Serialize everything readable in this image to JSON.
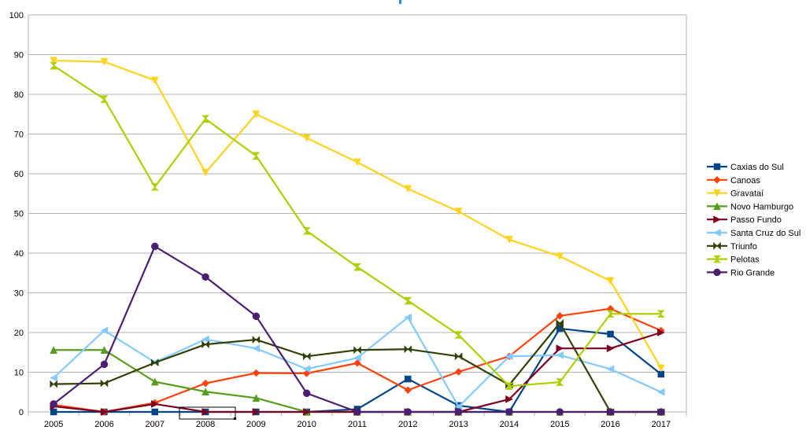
{
  "chart_data": {
    "type": "line",
    "title": "",
    "xlabel": "",
    "ylabel": "",
    "categories": [
      "2005",
      "2006",
      "2007",
      "2008",
      "2009",
      "2010",
      "2011",
      "2012",
      "2013",
      "2014",
      "2015",
      "2016",
      "2017"
    ],
    "ylim": [
      0,
      100
    ],
    "yticks": [
      "0",
      "10",
      "20",
      "30",
      "40",
      "50",
      "60",
      "70",
      "80",
      "90",
      "100"
    ],
    "grid": "horizontal",
    "legend_position": "right",
    "series": [
      {
        "name": "Caxias do Sul",
        "color": "#004586",
        "marker": "square",
        "values": [
          0,
          0,
          0,
          0,
          0,
          0,
          0.7,
          8.3,
          1.6,
          0,
          21,
          19.6,
          9.5
        ]
      },
      {
        "name": "Canoas",
        "color": "#ff420e",
        "marker": "diamond",
        "values": [
          1.8,
          0,
          2.3,
          7.2,
          9.8,
          9.7,
          12.3,
          5.5,
          10.1,
          14,
          24.2,
          26,
          20.5
        ]
      },
      {
        "name": "Gravataí",
        "color": "#ffd320",
        "marker": "triangle-down",
        "values": [
          88.5,
          88.2,
          83.5,
          60.3,
          75,
          69,
          62.9,
          56.2,
          50.5,
          43.4,
          39.2,
          33,
          11
        ]
      },
      {
        "name": "Novo Hamburgo",
        "color": "#579d1c",
        "marker": "triangle-up",
        "values": [
          15.6,
          15.6,
          7.6,
          5.1,
          3.5,
          0,
          0,
          0,
          0,
          0,
          0,
          0,
          0
        ]
      },
      {
        "name": "Passo Fundo",
        "color": "#7e0021",
        "marker": "triangle-right",
        "values": [
          1.4,
          0,
          2,
          0,
          0,
          0,
          0,
          0,
          0,
          3.2,
          16,
          16,
          20
        ]
      },
      {
        "name": "Santa Cruz do Sul",
        "color": "#83caff",
        "marker": "triangle-left",
        "values": [
          8.6,
          20.5,
          12.5,
          18.3,
          16,
          10.8,
          13.6,
          23.8,
          1.3,
          14,
          14.3,
          10.8,
          5
        ]
      },
      {
        "name": "Triunfo",
        "color": "#314004",
        "marker": "bowtie",
        "values": [
          7,
          7.2,
          12.4,
          17,
          18.2,
          14,
          15.6,
          15.8,
          14,
          6.8,
          22.4,
          0,
          0
        ]
      },
      {
        "name": "Pelotas",
        "color": "#aecf00",
        "marker": "hourglass",
        "values": [
          87.2,
          78.8,
          56.7,
          73.8,
          64.5,
          45.6,
          36.5,
          28,
          19.4,
          6.5,
          7.5,
          24.7,
          24.7
        ]
      },
      {
        "name": "Rio Grande",
        "color": "#4b1f6f",
        "marker": "circle",
        "values": [
          2,
          12,
          41.7,
          34,
          24.1,
          4.7,
          0,
          0,
          0,
          0,
          0,
          0,
          0
        ]
      }
    ]
  }
}
